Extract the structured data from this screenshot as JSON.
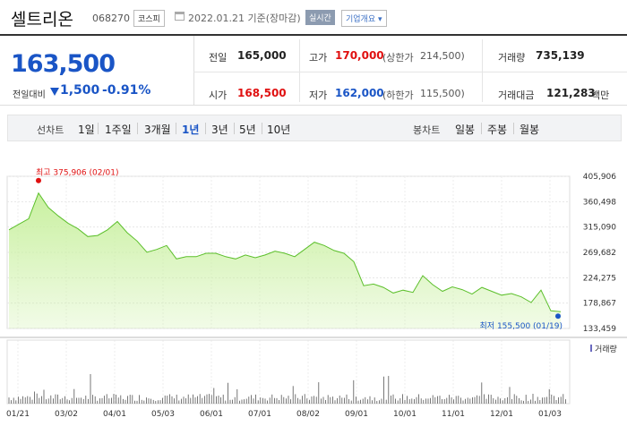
{
  "header": {
    "name": "셀트리온",
    "code": "068270",
    "market": "코스피",
    "date": "2022.01.21",
    "date_suffix": "기준(장마감)",
    "realtime": "실시간",
    "overview": "기업개요"
  },
  "price": {
    "current": "163,500",
    "compare_label": "전일대비",
    "change": "1,500",
    "change_pct": "-0.91%"
  },
  "stats": {
    "prev_label": "전일",
    "prev": "165,000",
    "high_label": "고가",
    "high": "170,000",
    "upper_limit_label": "(상한가",
    "upper_limit": "214,500)",
    "volume_label": "거래량",
    "volume": "735,139",
    "open_label": "시가",
    "open": "168,500",
    "low_label": "저가",
    "low": "162,000",
    "lower_limit_label": "(하한가",
    "lower_limit": "115,500)",
    "amount_label": "거래대금",
    "amount": "121,283",
    "amount_unit": "백만"
  },
  "periods": {
    "line_label": "선차트",
    "line": [
      "1일",
      "1주일",
      "3개월",
      "1년",
      "3년",
      "5년",
      "10년"
    ],
    "active": "1년",
    "candle_label": "봉차트",
    "candle": [
      "일봉",
      "주봉",
      "월봉"
    ]
  },
  "chart_data": {
    "type": "area",
    "y_ticks": [
      "405,906",
      "360,498",
      "315,090",
      "269,682",
      "224,275",
      "178,867",
      "133,459"
    ],
    "x_ticks": [
      "01/21",
      "03/02",
      "04/01",
      "05/03",
      "06/01",
      "07/01",
      "08/02",
      "09/01",
      "10/01",
      "11/01",
      "12/01",
      "01/03"
    ],
    "high_label": "최고 375,906 (02/01)",
    "low_label": "최저 155,500 (01/19)",
    "volume_label": "거래량",
    "values": [
      310000,
      320000,
      330000,
      375906,
      350000,
      335000,
      322000,
      312000,
      298000,
      300000,
      310000,
      325000,
      305000,
      290000,
      270000,
      275000,
      282000,
      258000,
      262000,
      262000,
      268000,
      268000,
      262000,
      258000,
      265000,
      260000,
      265000,
      272000,
      268000,
      262000,
      275000,
      288000,
      282000,
      273000,
      268000,
      253000,
      210000,
      213000,
      207000,
      197000,
      202000,
      198000,
      228000,
      212000,
      200000,
      208000,
      203000,
      195000,
      207000,
      200000,
      193000,
      196000,
      190000,
      180000,
      202000,
      165000,
      163500
    ],
    "ylim": [
      133459,
      405906
    ],
    "area_color": "#c9f0a0",
    "line_color": "#5bbf2a"
  }
}
